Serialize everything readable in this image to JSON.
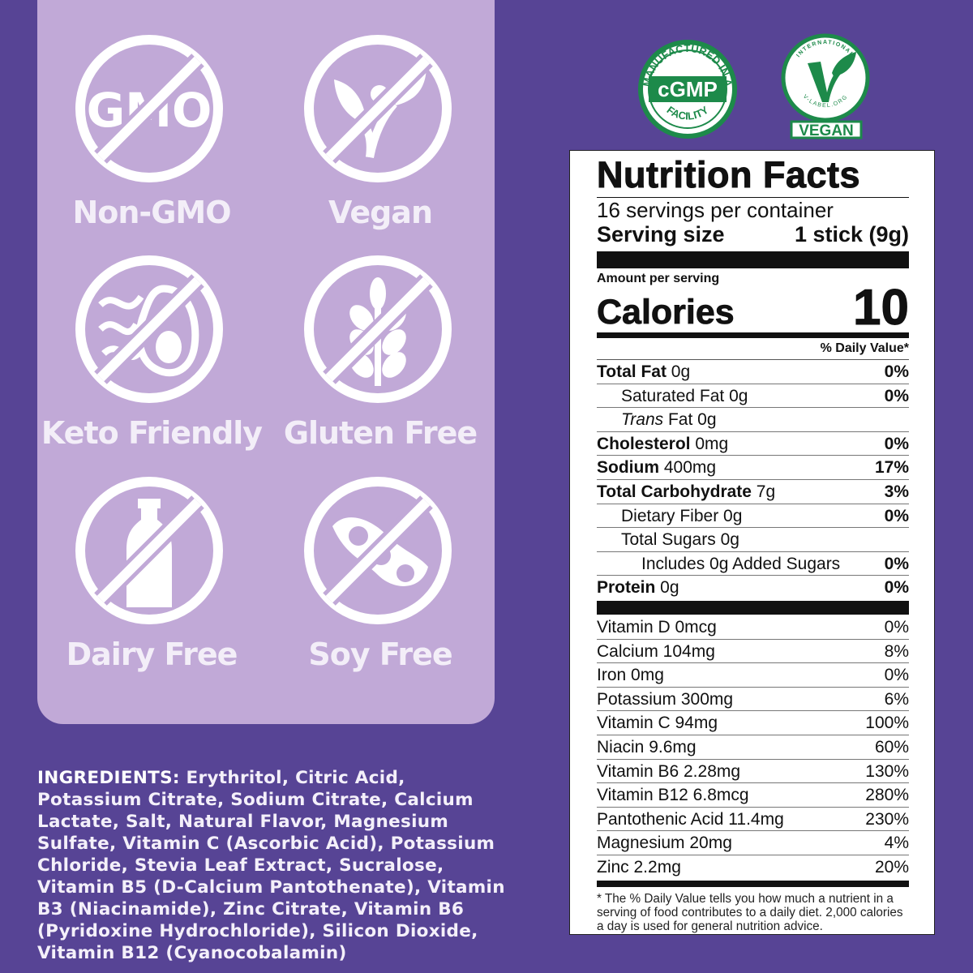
{
  "badges": [
    {
      "label": "Non-GMO",
      "icon": "gmo-icon",
      "text": "GMO"
    },
    {
      "label": "Vegan",
      "icon": "vegan-plant-icon"
    },
    {
      "label": "Keto Friendly",
      "icon": "avocado-icon"
    },
    {
      "label": "Gluten Free",
      "icon": "wheat-icon"
    },
    {
      "label": "Dairy Free",
      "icon": "milk-bottle-icon"
    },
    {
      "label": "Soy Free",
      "icon": "soybean-icon"
    }
  ],
  "ingredients": {
    "heading": "INGREDIENTS:",
    "text": " Erythritol, Citric Acid, Potassium Citrate, Sodium Citrate, Calcium Lactate, Salt, Natural Flavor, Magnesium Sulfate, Vitamin C (Ascorbic Acid), Potassium Chloride, Stevia Leaf Extract, Sucralose, Vitamin B5 (D-Calcium Pantothenate), Vitamin B3 (Niacinamide), Zinc Citrate, Vitamin B6 (Pyridoxine Hydrochloride), Silicon Dioxide, Vitamin B12 (Cyanocobalamin)"
  },
  "seals": {
    "cgmp": {
      "center": "cGMP",
      "top": "MANUFACTURED IN A",
      "bottom": "FACILITY"
    },
    "vegan": {
      "top": "INTERNATIONAL",
      "bottom": "V-LABEL.ORG",
      "label": "VEGAN"
    },
    "green": "#1d8a4a"
  },
  "nutrition": {
    "title": "Nutrition Facts",
    "servings": "16 servings per container",
    "serving_size_label": "Serving size",
    "serving_size": "1 stick (9g)",
    "amount_per_serving": "Amount per serving",
    "calories_label": "Calories",
    "calories": "10",
    "dv_header": "% Daily Value*",
    "rows": [
      {
        "bold": "Total Fat",
        "amt": " 0g",
        "dv": "0%",
        "indent": 0
      },
      {
        "name": "Saturated Fat 0g",
        "dv": "0%",
        "indent": 1
      },
      {
        "italic": "Trans",
        "name": " Fat 0g",
        "dv": "",
        "indent": 1
      },
      {
        "bold": "Cholesterol",
        "amt": " 0mg",
        "dv": "0%",
        "indent": 0
      },
      {
        "bold": "Sodium",
        "amt": " 400mg",
        "dv": "17%",
        "indent": 0
      },
      {
        "bold": "Total Carbohydrate",
        "amt": " 7g",
        "dv": "3%",
        "indent": 0
      },
      {
        "name": "Dietary Fiber 0g",
        "dv": "0%",
        "indent": 1
      },
      {
        "name": "Total Sugars 0g",
        "dv": "",
        "indent": 1
      },
      {
        "name": "Includes 0g Added Sugars",
        "dv": "0%",
        "indent": 2
      },
      {
        "bold": "Protein",
        "amt": " 0g",
        "dv": "0%",
        "indent": 0
      }
    ],
    "vitamins": [
      {
        "name": "Vitamin D 0mcg",
        "dv": "0%"
      },
      {
        "name": "Calcium 104mg",
        "dv": "8%"
      },
      {
        "name": "Iron 0mg",
        "dv": "0%"
      },
      {
        "name": "Potassium 300mg",
        "dv": "6%"
      },
      {
        "name": "Vitamin C 94mg",
        "dv": "100%"
      },
      {
        "name": "Niacin 9.6mg",
        "dv": "60%"
      },
      {
        "name": "Vitamin B6 2.28mg",
        "dv": "130%"
      },
      {
        "name": "Vitamin B12 6.8mcg",
        "dv": "280%"
      },
      {
        "name": "Pantothenic Acid 11.4mg",
        "dv": "230%"
      },
      {
        "name": "Magnesium 20mg",
        "dv": "4%"
      },
      {
        "name": "Zinc 2.2mg",
        "dv": "20%"
      }
    ],
    "footnote": "* The % Daily Value tells you how much a nutrient in a serving of food contributes to a daily diet. 2,000 calories a day is used for general nutrition advice."
  }
}
